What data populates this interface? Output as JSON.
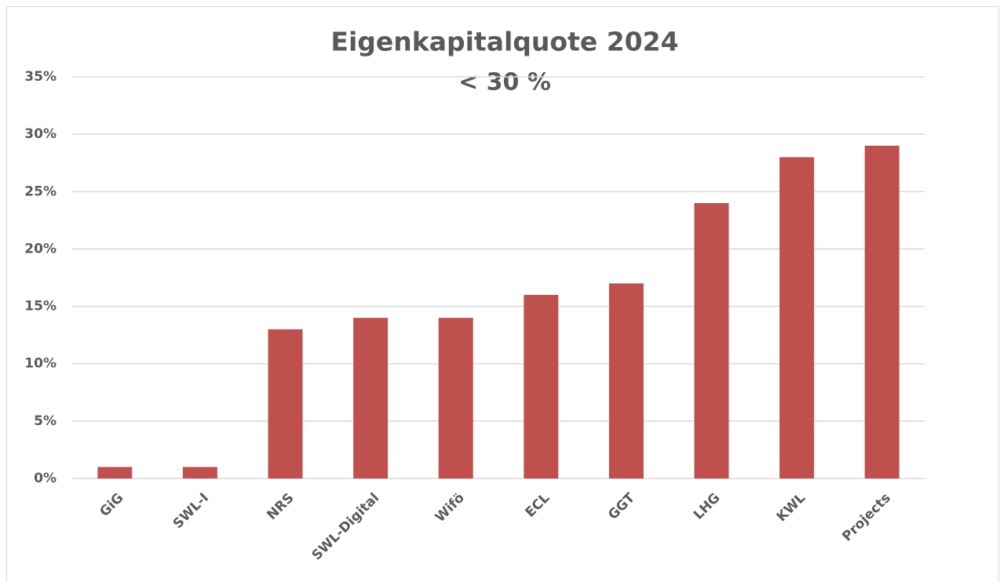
{
  "chart_data": {
    "type": "bar",
    "title": "Eigenkapitalquote 2024",
    "subtitle": "< 30 %",
    "categories": [
      "GiG",
      "SWL-I",
      "NRS",
      "SWL-Digital",
      "Wifö",
      "ECL",
      "GGT",
      "LHG",
      "KWL",
      "Projects"
    ],
    "values": [
      1,
      1,
      13,
      14,
      14,
      16,
      17,
      24,
      28,
      29
    ],
    "color": "#c0504d",
    "ylim": [
      0,
      35
    ],
    "yticks": [
      {
        "value": 0,
        "label": "0%"
      },
      {
        "value": 5,
        "label": "5%"
      },
      {
        "value": 10,
        "label": "10%"
      },
      {
        "value": 15,
        "label": "15%"
      },
      {
        "value": 20,
        "label": "20%"
      },
      {
        "value": 25,
        "label": "25%"
      },
      {
        "value": 30,
        "label": "30%"
      },
      {
        "value": 35,
        "label": "35%"
      }
    ],
    "grid": true
  }
}
